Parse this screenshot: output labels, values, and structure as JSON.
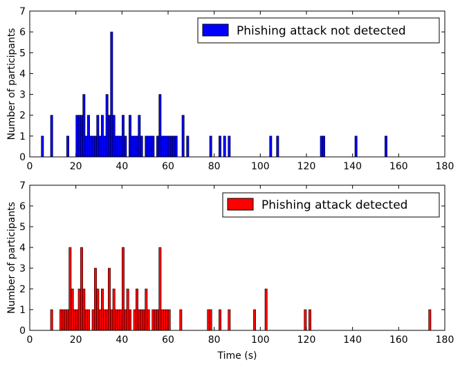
{
  "figure": {
    "xlabel": "Time (s)"
  },
  "chart_data": [
    {
      "type": "bar",
      "title": "",
      "xlabel": "",
      "ylabel": "Number of participants",
      "xlim": [
        0,
        180
      ],
      "ylim": [
        0,
        7
      ],
      "xticks": [
        "0",
        "20",
        "40",
        "60",
        "80",
        "100",
        "120",
        "140",
        "160",
        "180"
      ],
      "yticks": [
        "0",
        "1",
        "2",
        "3",
        "4",
        "5",
        "6",
        "7"
      ],
      "bin_width": 1,
      "grid": false,
      "legend_position": "top-right",
      "series": [
        {
          "name": "Phishing attack not detected",
          "color": "#0000ff",
          "x": [
            5,
            9,
            16,
            20,
            21,
            22,
            23,
            24,
            25,
            26,
            27,
            28,
            29,
            30,
            31,
            32,
            33,
            34,
            35,
            36,
            37,
            38,
            39,
            40,
            41,
            43,
            44,
            45,
            46,
            47,
            48,
            50,
            51,
            52,
            53,
            55,
            56,
            57,
            58,
            59,
            60,
            61,
            62,
            63,
            66,
            68,
            78,
            82,
            84,
            86,
            104,
            107,
            126,
            127,
            141,
            154
          ],
          "values": [
            1,
            2,
            1,
            2,
            2,
            2,
            3,
            1,
            2,
            1,
            1,
            1,
            2,
            1,
            2,
            1,
            3,
            2,
            6,
            2,
            1,
            1,
            1,
            2,
            1,
            2,
            1,
            1,
            1,
            2,
            1,
            1,
            1,
            1,
            1,
            1,
            3,
            1,
            1,
            1,
            1,
            1,
            1,
            1,
            2,
            1,
            1,
            1,
            1,
            1,
            1,
            1,
            1,
            1,
            1,
            1
          ]
        }
      ]
    },
    {
      "type": "bar",
      "title": "",
      "xlabel": "Time (s)",
      "ylabel": "Number of participants",
      "xlim": [
        0,
        180
      ],
      "ylim": [
        0,
        7
      ],
      "xticks": [
        "0",
        "20",
        "40",
        "60",
        "80",
        "100",
        "120",
        "140",
        "160",
        "180"
      ],
      "yticks": [
        "0",
        "1",
        "2",
        "3",
        "4",
        "5",
        "6",
        "7"
      ],
      "bin_width": 1,
      "grid": false,
      "legend_position": "top-right",
      "series": [
        {
          "name": "Phishing attack detected",
          "color": "#ff0000",
          "x": [
            9,
            13,
            14,
            15,
            16,
            17,
            18,
            19,
            20,
            21,
            22,
            23,
            24,
            25,
            27,
            28,
            29,
            30,
            31,
            32,
            33,
            34,
            35,
            36,
            37,
            38,
            39,
            40,
            41,
            42,
            43,
            45,
            46,
            47,
            48,
            49,
            50,
            51,
            53,
            54,
            55,
            56,
            57,
            58,
            59,
            60,
            65,
            77,
            78,
            82,
            86,
            97,
            102,
            119,
            121,
            173
          ],
          "values": [
            1,
            1,
            1,
            1,
            1,
            4,
            2,
            1,
            1,
            2,
            4,
            2,
            1,
            1,
            1,
            3,
            2,
            1,
            2,
            1,
            1,
            3,
            1,
            2,
            1,
            1,
            1,
            4,
            1,
            2,
            1,
            1,
            2,
            1,
            1,
            1,
            2,
            1,
            1,
            1,
            1,
            4,
            1,
            1,
            1,
            1,
            1,
            1,
            1,
            1,
            1,
            1,
            2,
            1,
            1,
            1
          ]
        }
      ]
    }
  ]
}
